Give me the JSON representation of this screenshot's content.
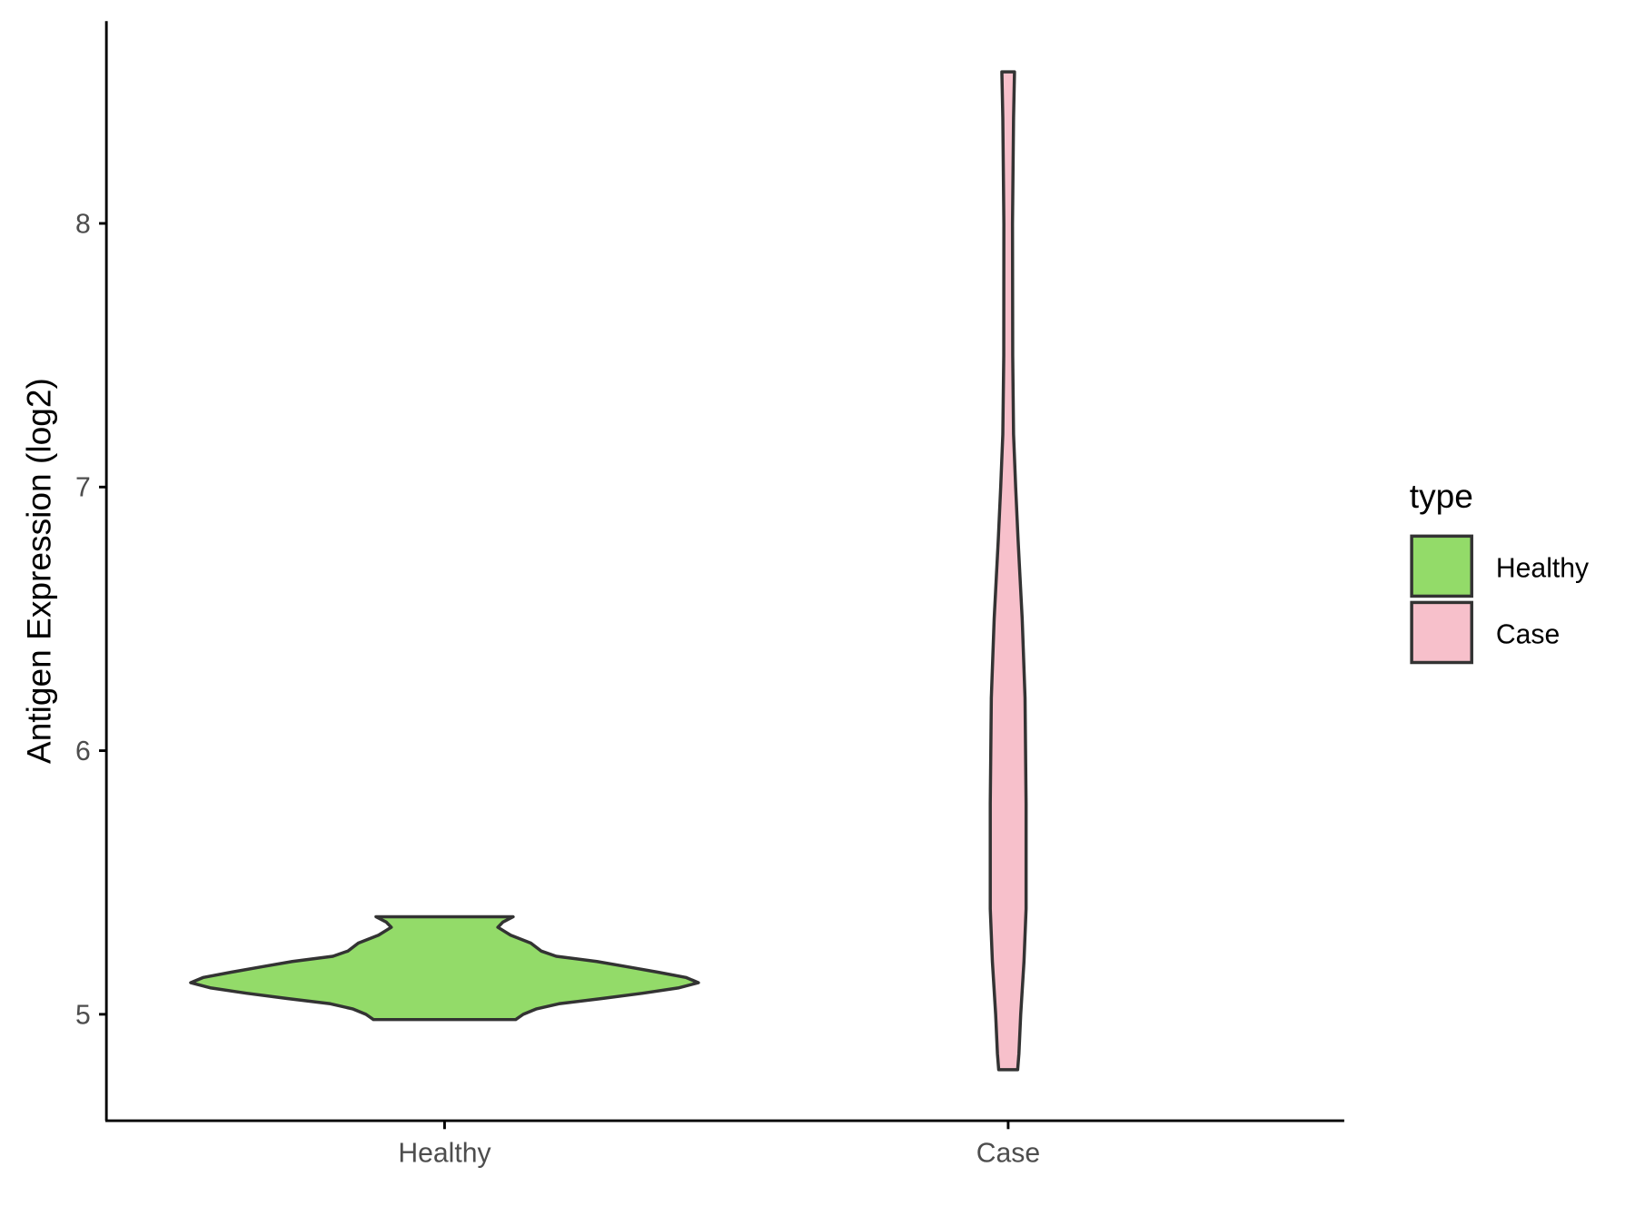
{
  "chart_data": {
    "type": "violin",
    "title": "",
    "xlabel": "",
    "ylabel": "Antigen Expression (log2)",
    "ylim": [
      4.6,
      8.77
    ],
    "yticks": [
      "5",
      "6",
      "7",
      "8"
    ],
    "categories": [
      "Healthy",
      "Case"
    ],
    "legend": {
      "title": "type",
      "placement": "right",
      "entries": [
        "Healthy",
        "Case"
      ]
    },
    "series": [
      {
        "name": "Healthy",
        "color": "#93DB69",
        "min": 4.98,
        "max": 5.37,
        "profile": [
          [
            4.98,
            0.28
          ],
          [
            5.0,
            0.31
          ],
          [
            5.02,
            0.36
          ],
          [
            5.04,
            0.45
          ],
          [
            5.06,
            0.62
          ],
          [
            5.08,
            0.78
          ],
          [
            5.1,
            0.92
          ],
          [
            5.12,
            1.0
          ],
          [
            5.14,
            0.95
          ],
          [
            5.16,
            0.84
          ],
          [
            5.18,
            0.72
          ],
          [
            5.2,
            0.6
          ],
          [
            5.22,
            0.44
          ],
          [
            5.24,
            0.38
          ],
          [
            5.27,
            0.34
          ],
          [
            5.3,
            0.26
          ],
          [
            5.33,
            0.21
          ],
          [
            5.35,
            0.23
          ],
          [
            5.37,
            0.27
          ]
        ]
      },
      {
        "name": "Case",
        "color": "#F7C0CB",
        "min": 4.79,
        "max": 8.575,
        "profile": [
          [
            4.79,
            0.53
          ],
          [
            4.85,
            0.6
          ],
          [
            5.0,
            0.7
          ],
          [
            5.2,
            0.88
          ],
          [
            5.4,
            1.0
          ],
          [
            5.8,
            1.0
          ],
          [
            6.2,
            0.94
          ],
          [
            6.5,
            0.78
          ],
          [
            6.8,
            0.55
          ],
          [
            7.0,
            0.42
          ],
          [
            7.2,
            0.3
          ],
          [
            7.5,
            0.25
          ],
          [
            8.0,
            0.24
          ],
          [
            8.4,
            0.3
          ],
          [
            8.575,
            0.35
          ]
        ]
      }
    ]
  }
}
